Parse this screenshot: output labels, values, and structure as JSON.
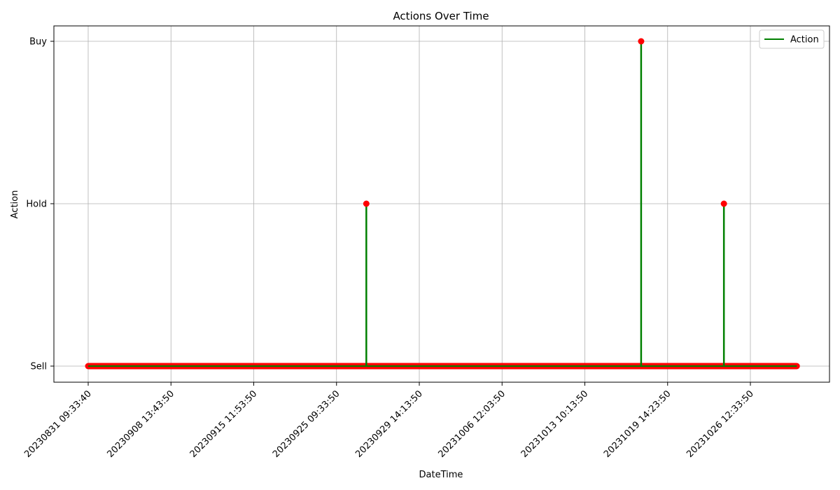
{
  "chart_data": {
    "type": "line",
    "title": "Actions Over Time",
    "xlabel": "DateTime",
    "ylabel": "Action",
    "x_ticks": [
      "20230831  09:33:40",
      "20230908  13:43:50",
      "20230915  11:53:50",
      "20230925  09:33:50",
      "20230929  14:13:50",
      "20231006  12:03:50",
      "20231013  10:13:50",
      "20231019  14:23:50",
      "20231026  12:33:50"
    ],
    "y_ticks": [
      "Sell",
      "Hold",
      "Buy"
    ],
    "x_index_range": [
      0,
      8.56
    ],
    "spikes": [
      {
        "x_index": 3.36,
        "action": "Hold"
      },
      {
        "x_index": 6.68,
        "action": "Buy"
      },
      {
        "x_index": 7.68,
        "action": "Hold"
      }
    ],
    "baseline_action": "Sell",
    "grid": true,
    "legend": {
      "position": "top-right",
      "entries": [
        {
          "label": "Action",
          "color": "#008000"
        }
      ]
    },
    "series": [
      {
        "name": "Action",
        "line_color": "#008000",
        "marker_color": "#ff0000"
      }
    ]
  }
}
